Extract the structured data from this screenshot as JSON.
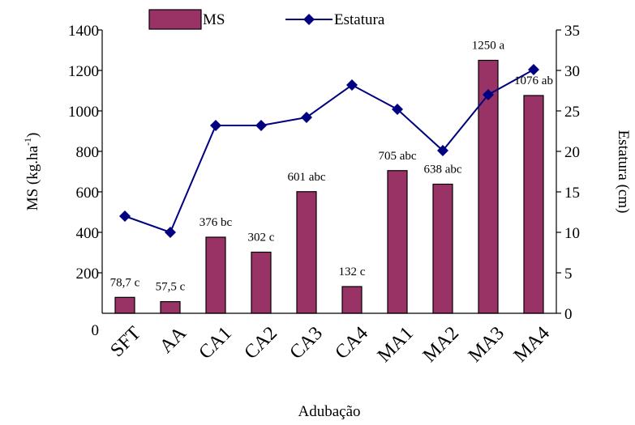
{
  "chart_data": {
    "type": "bar",
    "xlabel": "Adubação",
    "categories": [
      "SFT",
      "AA",
      "CA1",
      "CA2",
      "CA3",
      "CA4",
      "MA1",
      "MA2",
      "MA3",
      "MA4"
    ],
    "series": [
      {
        "name": "MS",
        "type": "bar",
        "axis": "left",
        "values": [
          78.7,
          57.5,
          376,
          302,
          601,
          132,
          705,
          638,
          1250,
          1076
        ],
        "labels": [
          "78,7 c",
          "57,5 c",
          "376 bc",
          "302 c",
          "601 abc",
          "132 c",
          "705 abc",
          "638 abc",
          "1250 a",
          "1076 ab"
        ],
        "color": "#993366"
      },
      {
        "name": "Estatura",
        "type": "line",
        "axis": "right",
        "values": [
          12,
          10,
          23.2,
          23.2,
          24.2,
          28.2,
          25.2,
          20.1,
          27,
          30.1
        ],
        "color": "#000080"
      }
    ],
    "y_left": {
      "label": "MS (kg.ha-1)",
      "label_base": "MS (kg.ha",
      "label_sup": "-1",
      "label_end": ")",
      "ylim": [
        0,
        1400
      ],
      "ticks": [
        200,
        400,
        600,
        800,
        1000,
        1200,
        1400
      ],
      "zero_label": "0"
    },
    "y_right": {
      "label": "Estatura (cm)",
      "ylim": [
        0,
        35
      ],
      "ticks": [
        0,
        5,
        10,
        15,
        20,
        25,
        30,
        35
      ]
    },
    "legend": {
      "placement": "top-center",
      "items": [
        "MS",
        "Estatura"
      ]
    },
    "grid": false
  }
}
